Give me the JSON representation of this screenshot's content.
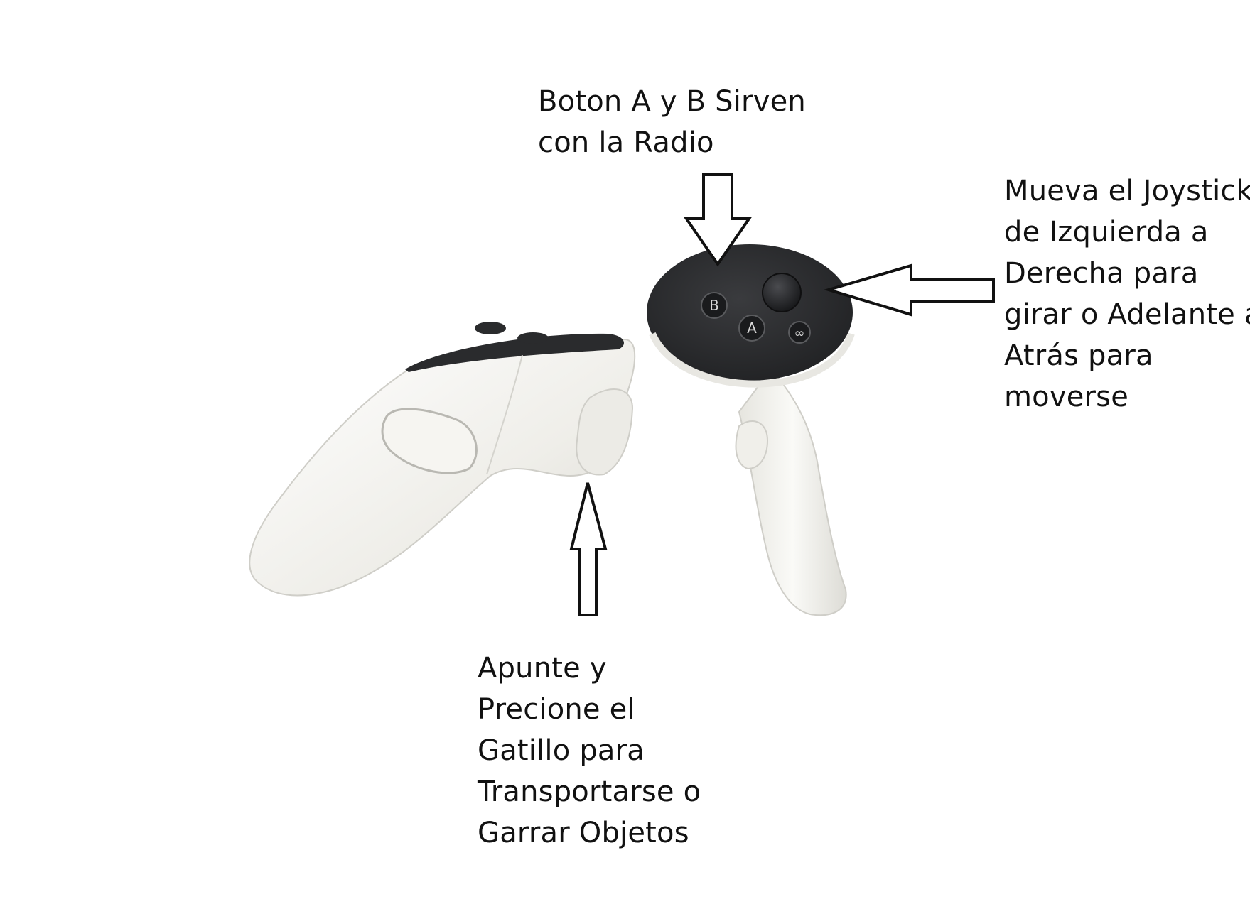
{
  "labels": {
    "top": {
      "line1": "Boton A y B Sirven",
      "line2": "con la Radio"
    },
    "right": {
      "line1": "Mueva el Joystick",
      "line2": "de Izquierda a",
      "line3": "Derecha para",
      "line4": "girar o Adelante a",
      "line5": "Atrás para",
      "line6": "moverse"
    },
    "bottom": {
      "line1": "Apunte y",
      "line2": "Precione el",
      "line3": "Gatillo para",
      "line4": "Transportarse o",
      "line5": "Garrar Objetos"
    }
  },
  "controller_buttons": {
    "b": "B",
    "a": "A",
    "menu": "∞"
  },
  "colors": {
    "controller_body": "#f2f1ec",
    "controller_face": "#2a2b2d",
    "arrow_stroke": "#111111",
    "arrow_fill": "#ffffff"
  }
}
